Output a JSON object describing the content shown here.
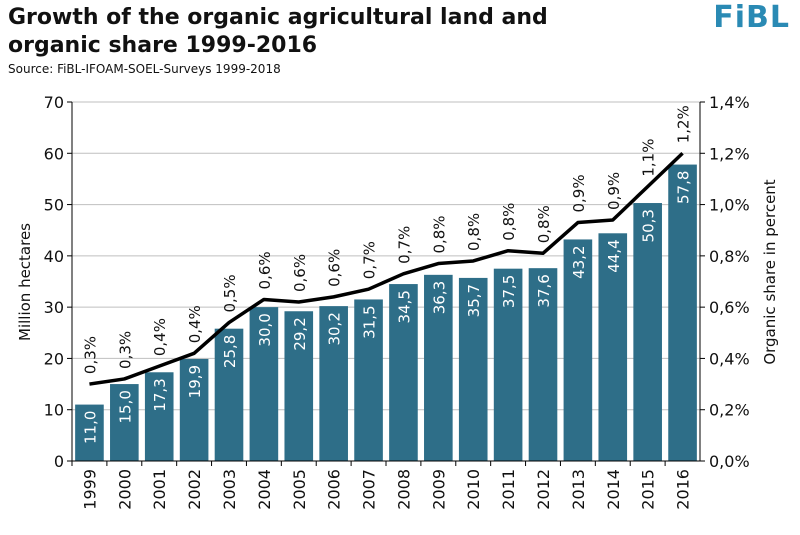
{
  "header": {
    "title": "Growth of the organic agricultural land and organic share 1999-2016",
    "source": "Source: FiBL-IFOAM-SOEL-Surveys 1999-2018",
    "logo": "FiBL"
  },
  "chart_data": {
    "type": "bar",
    "categories": [
      "1999",
      "2000",
      "2001",
      "2002",
      "2003",
      "2004",
      "2005",
      "2006",
      "2007",
      "2008",
      "2009",
      "2010",
      "2011",
      "2012",
      "2013",
      "2014",
      "2015",
      "2016"
    ],
    "series": [
      {
        "type": "bar",
        "values": [
          11.0,
          15.0,
          17.3,
          19.9,
          25.8,
          30.0,
          29.2,
          30.2,
          31.5,
          34.5,
          36.3,
          35.7,
          37.5,
          37.6,
          43.2,
          44.4,
          50.3,
          57.8
        ],
        "labels": [
          "11,0",
          "15,0",
          "17,3",
          "19,9",
          "25,8",
          "30,0",
          "29,2",
          "30,2",
          "31,5",
          "34,5",
          "36,3",
          "35,7",
          "37,5",
          "37,6",
          "43,2",
          "44,4",
          "50,3",
          "57,8"
        ],
        "axis": "left",
        "color": "#2e6e88"
      },
      {
        "type": "line",
        "values": [
          0.3,
          0.32,
          0.37,
          0.42,
          0.54,
          0.63,
          0.62,
          0.64,
          0.67,
          0.73,
          0.77,
          0.78,
          0.82,
          0.81,
          0.93,
          0.94,
          1.07,
          1.2
        ],
        "labels": [
          "0,3%",
          "0,3%",
          "0,4%",
          "0,4%",
          "0,5%",
          "0,6%",
          "0,6%",
          "0,6%",
          "0,7%",
          "0,7%",
          "0,8%",
          "0,8%",
          "0,8%",
          "0,8%",
          "0,9%",
          "0,9%",
          "1,1%",
          "1,2%"
        ],
        "axis": "right",
        "color": "#000000"
      }
    ],
    "ylabel": "Million hectares",
    "y2label": "Organic share in percent",
    "ylim": [
      0,
      70
    ],
    "y2lim": [
      0,
      1.4
    ],
    "yticks": [
      "0",
      "10",
      "20",
      "30",
      "40",
      "50",
      "60",
      "70"
    ],
    "y2ticks": [
      "0,0%",
      "0,2%",
      "0,4%",
      "0,6%",
      "0,8%",
      "1,0%",
      "1,2%",
      "1,4%"
    ],
    "grid": true
  }
}
